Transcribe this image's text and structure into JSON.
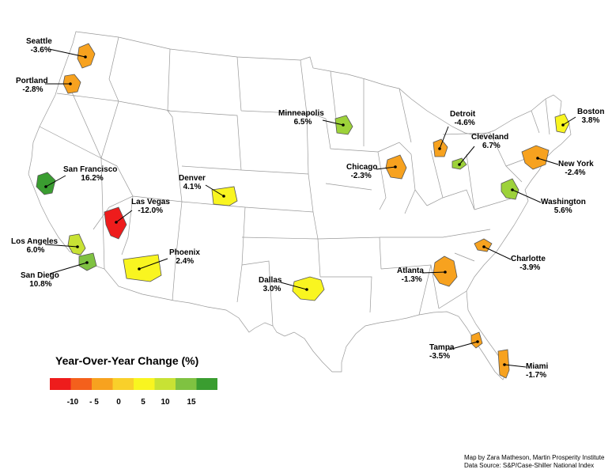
{
  "legend": {
    "title": "Year-Over-Year Change (%)",
    "colors": [
      "#ee1c1c",
      "#f4601c",
      "#f7a21f",
      "#f9d02a",
      "#f9f520",
      "#c8e234",
      "#7fc241",
      "#3a9d30"
    ],
    "ticks": [
      "-10",
      "- 5",
      "0",
      "5",
      "10",
      "15"
    ]
  },
  "credits": {
    "line1": "Map by Zara Matheson, Martin Prosperity Institute",
    "line2": "Data Source: S&P/Case-Shiller National Index"
  },
  "cities": [
    {
      "name": "Seattle",
      "value": "-3.6%",
      "color": "#f7a21f"
    },
    {
      "name": "Portland",
      "value": "-2.8%",
      "color": "#f7a21f"
    },
    {
      "name": "San Francisco",
      "value": "16.2%",
      "color": "#3a9d30"
    },
    {
      "name": "Las Vegas",
      "value": "-12.0%",
      "color": "#ee1c1c"
    },
    {
      "name": "Los Angeles",
      "value": "6.0%",
      "color": "#c8e234"
    },
    {
      "name": "San Diego",
      "value": "10.8%",
      "color": "#7fc241"
    },
    {
      "name": "Phoenix",
      "value": "2.4%",
      "color": "#f9f520"
    },
    {
      "name": "Denver",
      "value": "4.1%",
      "color": "#f9f520"
    },
    {
      "name": "Dallas",
      "value": "3.0%",
      "color": "#f9f520"
    },
    {
      "name": "Minneapolis",
      "value": "6.5%",
      "color": "#9dd23a"
    },
    {
      "name": "Chicago",
      "value": "-2.3%",
      "color": "#f7a21f"
    },
    {
      "name": "Detroit",
      "value": "-4.6%",
      "color": "#f7a21f"
    },
    {
      "name": "Cleveland",
      "value": "6.7%",
      "color": "#9dd23a"
    },
    {
      "name": "Boston",
      "value": "3.8%",
      "color": "#f9f520"
    },
    {
      "name": "New York",
      "value": "-2.4%",
      "color": "#f7a21f"
    },
    {
      "name": "Washington",
      "value": "5.6%",
      "color": "#9dd23a"
    },
    {
      "name": "Charlotte",
      "value": "-3.9%",
      "color": "#f7a21f"
    },
    {
      "name": "Atlanta",
      "value": "-1.3%",
      "color": "#f7a21f"
    },
    {
      "name": "Tampa",
      "value": "-3.5%",
      "color": "#f7a21f"
    },
    {
      "name": "Miami",
      "value": "-1.7%",
      "color": "#f7a21f"
    }
  ]
}
